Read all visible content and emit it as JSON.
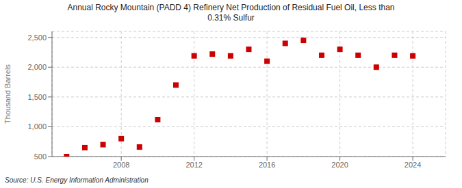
{
  "chart_data": {
    "type": "scatter",
    "title": "Annual Rocky Mountain (PADD 4) Refinery Net Production of Residual Fuel Oil, Less than\n0.31% Sulfur",
    "ylabel": "Thousand Barrels",
    "source": "Source: U.S. Energy Information Administration",
    "x": [
      2005,
      2006,
      2007,
      2008,
      2009,
      2010,
      2011,
      2012,
      2013,
      2014,
      2015,
      2016,
      2017,
      2018,
      2019,
      2020,
      2021,
      2022,
      2023,
      2024
    ],
    "values": [
      500,
      650,
      700,
      800,
      660,
      1120,
      1700,
      2190,
      2220,
      2190,
      2300,
      2100,
      2400,
      2450,
      2200,
      2300,
      2200,
      2000,
      2200,
      2190
    ],
    "color": "#cc0000",
    "marker": "square",
    "xlim": [
      2004.2,
      2025.8
    ],
    "xticks": [
      2008,
      2012,
      2016,
      2020,
      2024
    ],
    "ylim": [
      500,
      2600
    ],
    "yticks": [
      500,
      {
        "value": 1000,
        "label": "1,000"
      },
      {
        "value": 1500,
        "label": "1,500"
      },
      {
        "value": 2000,
        "label": "2,000"
      },
      {
        "value": 2500,
        "label": "2,500"
      }
    ],
    "grid": true
  }
}
